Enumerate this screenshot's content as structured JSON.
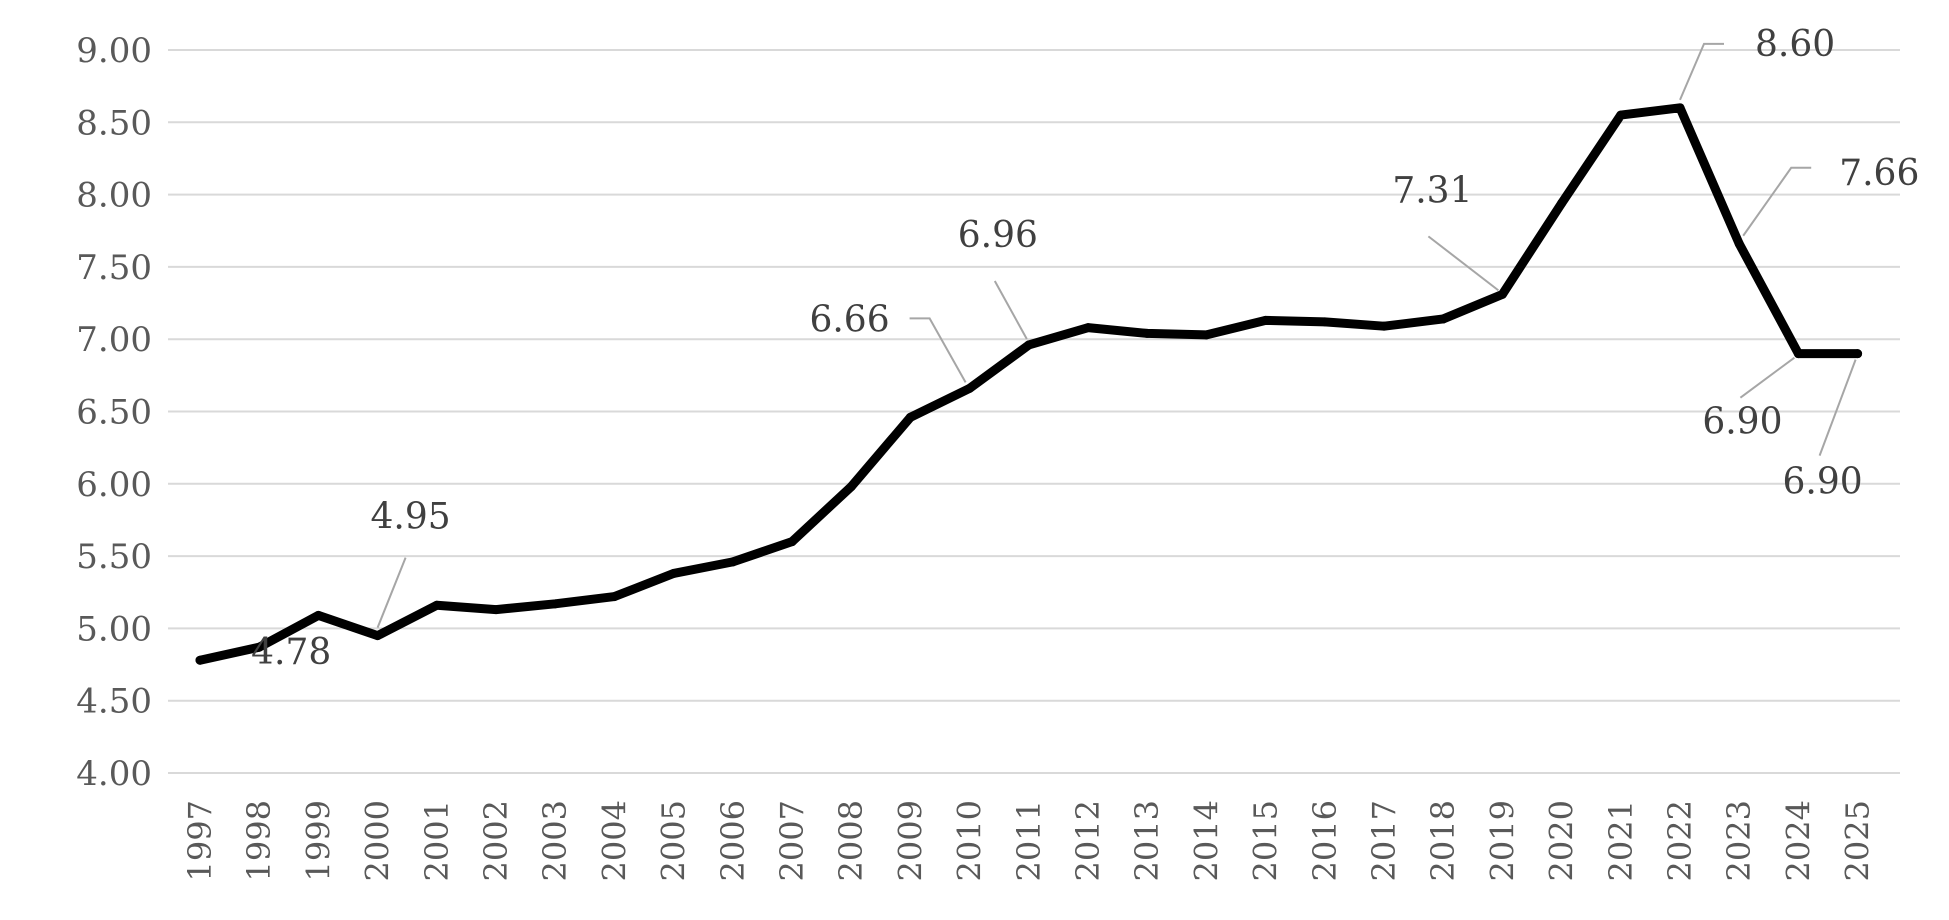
{
  "chart_data": {
    "type": "line",
    "title": "",
    "xlabel": "",
    "ylabel": "",
    "ylim": [
      4.0,
      9.0
    ],
    "grid": true,
    "legend": "none",
    "x": [
      "1997",
      "1998",
      "1999",
      "2000",
      "2001",
      "2002",
      "2003",
      "2004",
      "2005",
      "2006",
      "2007",
      "2008",
      "2009",
      "2010",
      "2011",
      "2012",
      "2013",
      "2014",
      "2015",
      "2016",
      "2017",
      "2018",
      "2019",
      "2020",
      "2021",
      "2022",
      "2023",
      "2024",
      "2025"
    ],
    "yticks": [
      "4.00",
      "4.50",
      "5.00",
      "5.50",
      "6.00",
      "6.50",
      "7.00",
      "7.50",
      "8.00",
      "8.50",
      "9.00"
    ],
    "series": [
      {
        "color": "#000000",
        "values": [
          4.78,
          4.87,
          5.09,
          4.95,
          5.16,
          5.13,
          5.17,
          5.22,
          5.38,
          5.46,
          5.6,
          5.98,
          6.46,
          6.66,
          6.96,
          7.08,
          7.04,
          7.03,
          7.13,
          7.12,
          7.09,
          7.14,
          7.31,
          7.94,
          8.55,
          8.6,
          7.66,
          6.9,
          6.9
        ]
      }
    ],
    "data_labels": [
      {
        "x": "1998",
        "text": "4.78"
      },
      {
        "x": "2000",
        "text": "4.95"
      },
      {
        "x": "2010",
        "text": "6.66"
      },
      {
        "x": "2011",
        "text": "6.96"
      },
      {
        "x": "2019",
        "text": "7.31"
      },
      {
        "x": "2022",
        "text": "8.60"
      },
      {
        "x": "2023",
        "text": "7.66"
      },
      {
        "x": "2024",
        "text": "6.90"
      },
      {
        "x": "2025",
        "text": "6.90"
      }
    ],
    "colors": {
      "line": "#000000",
      "grid": "#d9d9d9",
      "leader": "#a6a6a6",
      "ticks": "#595959"
    }
  }
}
